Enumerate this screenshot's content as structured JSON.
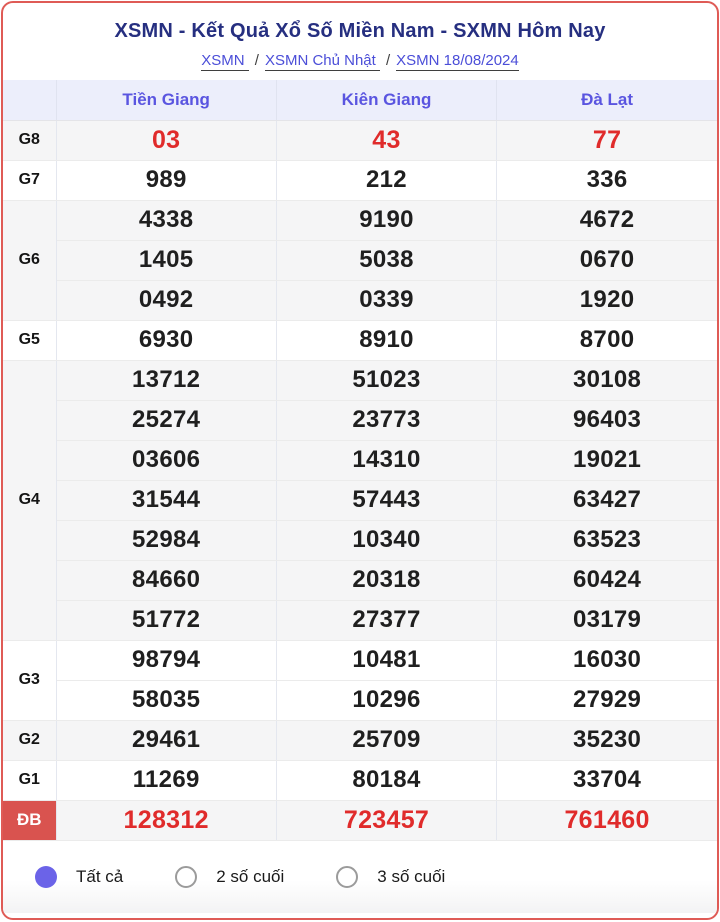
{
  "header": {
    "title": "XSMN - Kết Quả Xổ Số Miền Nam - SXMN Hôm Nay",
    "breadcrumb": [
      {
        "label": "XSMN"
      },
      {
        "label": "XSMN Chủ Nhật"
      },
      {
        "label": "XSMN 18/08/2024"
      }
    ],
    "separator": "/"
  },
  "table": {
    "province_columns": [
      "Tiền Giang",
      "Kiên Giang",
      "Đà Lạt"
    ],
    "prize_groups": [
      {
        "label": "G8",
        "highlight": true,
        "special": false,
        "rows": [
          [
            "03",
            "43",
            "77"
          ]
        ]
      },
      {
        "label": "G7",
        "highlight": false,
        "special": false,
        "rows": [
          [
            "989",
            "212",
            "336"
          ]
        ]
      },
      {
        "label": "G6",
        "highlight": false,
        "special": false,
        "rows": [
          [
            "4338",
            "9190",
            "4672"
          ],
          [
            "1405",
            "5038",
            "0670"
          ],
          [
            "0492",
            "0339",
            "1920"
          ]
        ]
      },
      {
        "label": "G5",
        "highlight": false,
        "special": false,
        "rows": [
          [
            "6930",
            "8910",
            "8700"
          ]
        ]
      },
      {
        "label": "G4",
        "highlight": false,
        "special": false,
        "rows": [
          [
            "13712",
            "51023",
            "30108"
          ],
          [
            "25274",
            "23773",
            "96403"
          ],
          [
            "03606",
            "14310",
            "19021"
          ],
          [
            "31544",
            "57443",
            "63427"
          ],
          [
            "52984",
            "10340",
            "63523"
          ],
          [
            "84660",
            "20318",
            "60424"
          ],
          [
            "51772",
            "27377",
            "03179"
          ]
        ]
      },
      {
        "label": "G3",
        "highlight": false,
        "special": false,
        "rows": [
          [
            "98794",
            "10481",
            "16030"
          ],
          [
            "58035",
            "10296",
            "27929"
          ]
        ]
      },
      {
        "label": "G2",
        "highlight": false,
        "special": false,
        "rows": [
          [
            "29461",
            "25709",
            "35230"
          ]
        ]
      },
      {
        "label": "G1",
        "highlight": false,
        "special": false,
        "rows": [
          [
            "11269",
            "80184",
            "33704"
          ]
        ]
      },
      {
        "label": "ĐB",
        "highlight": true,
        "special": true,
        "rows": [
          [
            "128312",
            "723457",
            "761460"
          ]
        ]
      }
    ]
  },
  "filters": {
    "options": [
      {
        "label": "Tất cả",
        "selected": true
      },
      {
        "label": "2 số cuối",
        "selected": false
      },
      {
        "label": "3 số cuối",
        "selected": false
      }
    ]
  },
  "colors": {
    "card_border": "#df5b56",
    "title": "#262f80",
    "link": "#4b4ed8",
    "header_bg": "#eceefb",
    "header_text": "#5a55e0",
    "zebra_row": "#f5f5f6",
    "value_text": "#1f1f1f",
    "highlight_value": "#e02b2b",
    "special_label_bg": "#d9534f",
    "radio_selected": "#6b63e8"
  }
}
